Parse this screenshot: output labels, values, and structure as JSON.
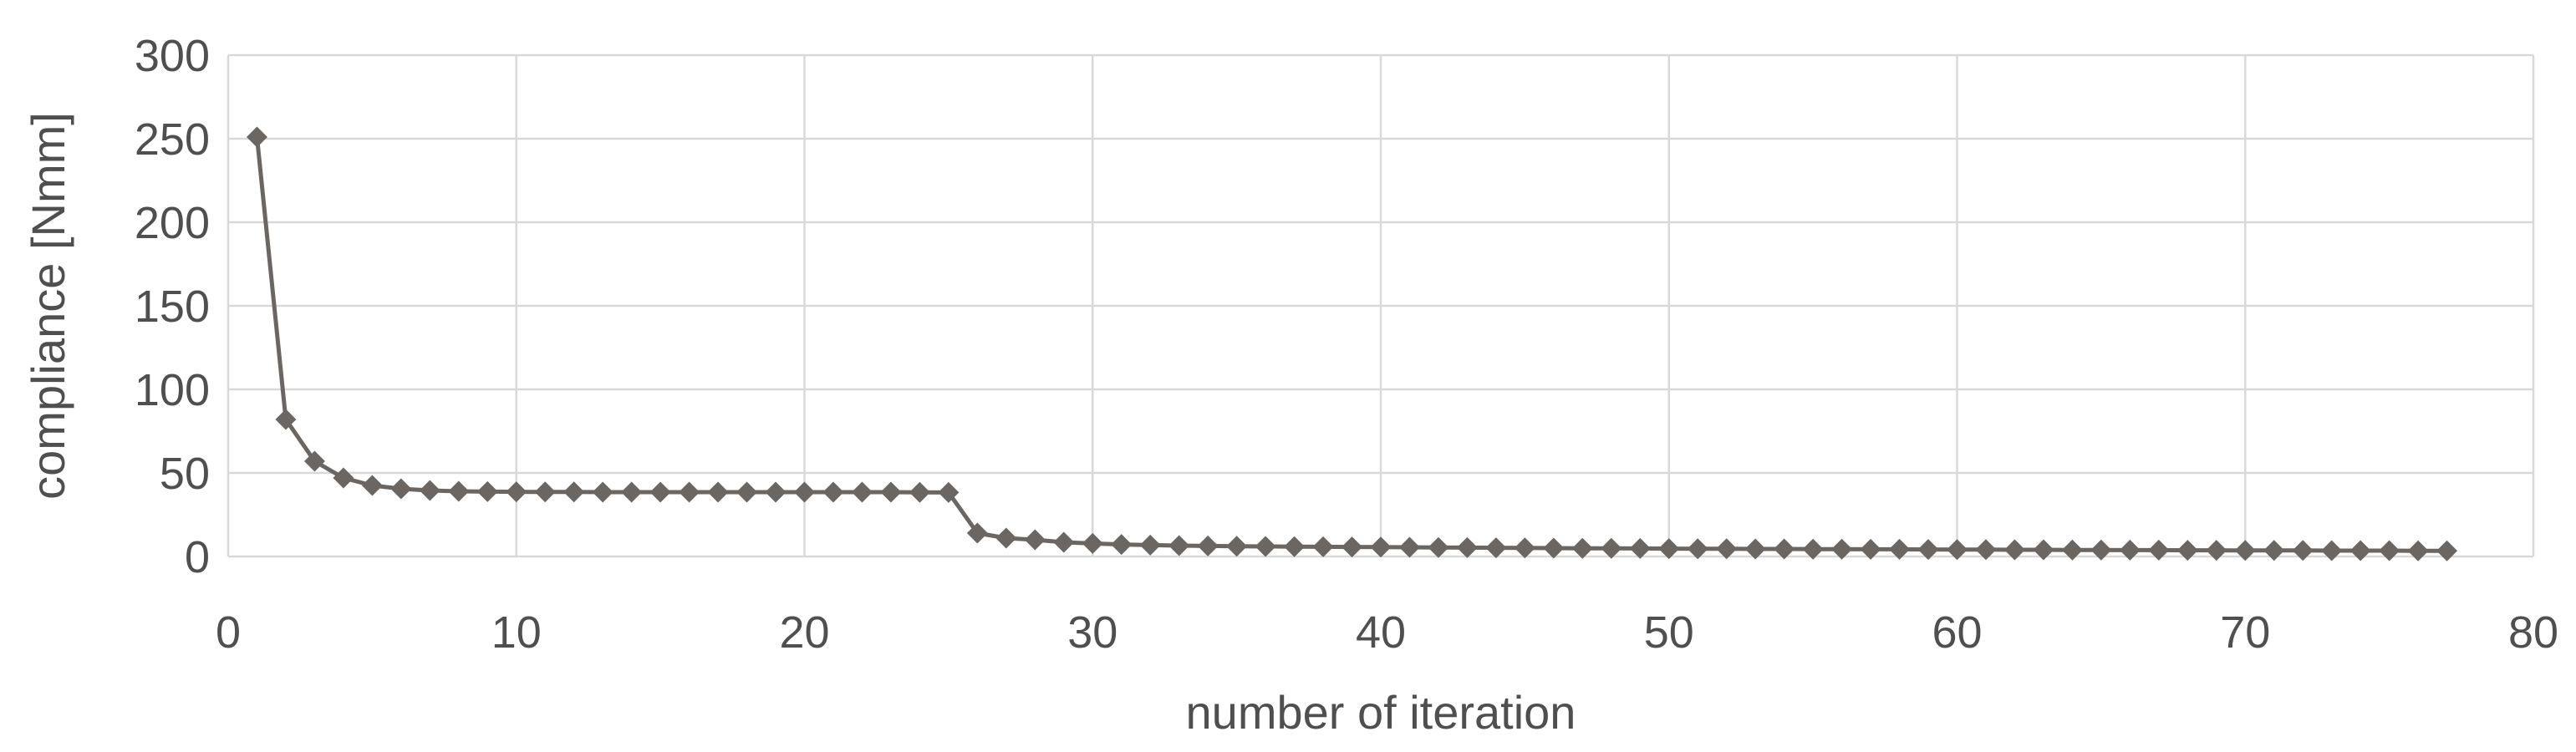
{
  "chart_data": {
    "type": "line",
    "title": "",
    "xlabel": "number of iteration",
    "ylabel": "compliance [Nmm]",
    "legend": "none",
    "grid": "both",
    "marker": "diamond",
    "xlim": [
      0,
      80
    ],
    "ylim": [
      0,
      300
    ],
    "x_ticks": [
      0,
      10,
      20,
      30,
      40,
      50,
      60,
      70,
      80
    ],
    "y_ticks": [
      0,
      50,
      100,
      150,
      200,
      250,
      300
    ],
    "x": [
      1,
      2,
      3,
      4,
      5,
      6,
      7,
      8,
      9,
      10,
      11,
      12,
      13,
      14,
      15,
      16,
      17,
      18,
      19,
      20,
      21,
      22,
      23,
      24,
      25,
      26,
      27,
      28,
      29,
      30,
      31,
      32,
      33,
      34,
      35,
      36,
      37,
      38,
      39,
      40,
      41,
      42,
      43,
      44,
      45,
      46,
      47,
      48,
      49,
      50,
      51,
      52,
      53,
      54,
      55,
      56,
      57,
      58,
      59,
      60,
      61,
      62,
      63,
      64,
      65,
      66,
      67,
      68,
      69,
      70,
      71,
      72,
      73,
      74,
      75,
      76,
      77
    ],
    "series": [
      {
        "name": "compliance",
        "values": [
          251,
          82,
          57,
          47,
          42.5,
          40.5,
          39.5,
          39,
          38.8,
          38.7,
          38.6,
          38.6,
          38.5,
          38.5,
          38.5,
          38.5,
          38.5,
          38.5,
          38.5,
          38.5,
          38.5,
          38.5,
          38.5,
          38.4,
          38.3,
          14,
          11,
          10,
          8.5,
          7.8,
          7.2,
          6.8,
          6.5,
          6.3,
          6.1,
          6.0,
          5.9,
          5.8,
          5.7,
          5.6,
          5.5,
          5.4,
          5.3,
          5.2,
          5.1,
          5.0,
          4.9,
          4.9,
          4.8,
          4.7,
          4.6,
          4.6,
          4.5,
          4.5,
          4.4,
          4.4,
          4.3,
          4.3,
          4.2,
          4.1,
          4.1,
          4.0,
          4.0,
          3.9,
          3.9,
          3.8,
          3.8,
          3.7,
          3.7,
          3.6,
          3.6,
          3.6,
          3.5,
          3.5,
          3.5,
          3.4,
          3.4
        ]
      }
    ],
    "colors": {
      "series": "#6b6662",
      "gridline": "#d9d9d9",
      "tick_label": "#4f4f4f",
      "axis_title": "#4f4f4f",
      "background": "#ffffff"
    }
  }
}
